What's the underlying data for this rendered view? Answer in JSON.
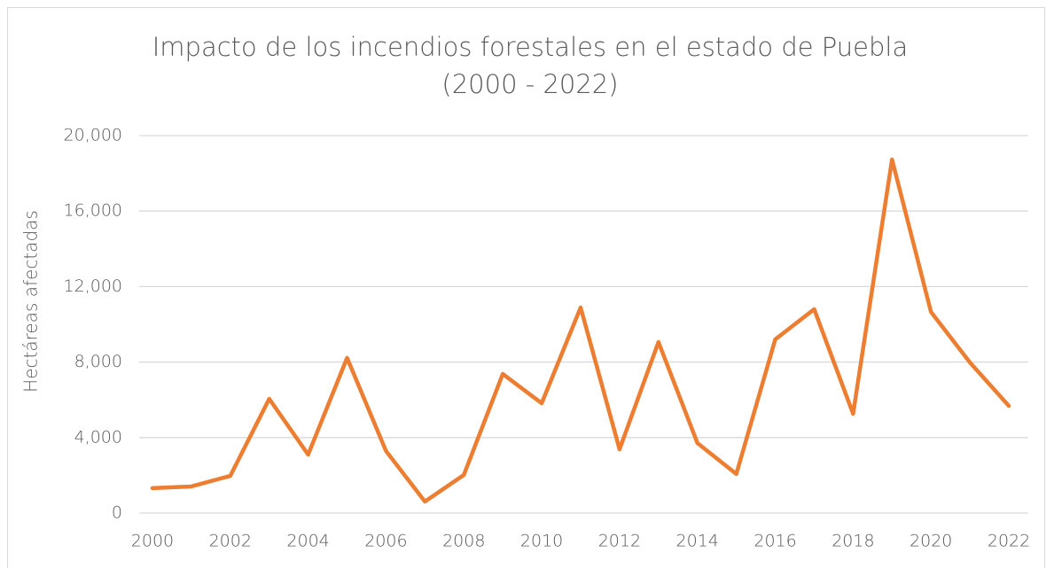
{
  "chart_data": {
    "type": "line",
    "title": [
      "Impacto de los incendios forestales en el estado de Puebla",
      "(2000 - 2022)"
    ],
    "y_label": "Hectáreas afectadas",
    "categories": [
      "2000",
      null,
      "2002",
      null,
      "2004",
      null,
      "2006",
      null,
      "2008",
      null,
      "2010",
      null,
      "2012",
      null,
      "2014",
      null,
      "2016",
      null,
      "2018",
      null,
      "2020",
      null,
      "2022"
    ],
    "series": [
      {
        "name": "Hectáreas afectadas",
        "color": "#ed7d31",
        "values": [
          1320,
          1410,
          1970,
          6050,
          3100,
          8220,
          3290,
          610,
          2020,
          7370,
          5820,
          10890,
          3380,
          9060,
          3710,
          2070,
          9200,
          10800,
          5260,
          18730,
          10660,
          7980,
          5680
        ]
      }
    ],
    "ylim": [
      0,
      20000
    ],
    "yticks": [
      0,
      {
        "value": 4000,
        "label": "4,000"
      },
      {
        "value": 8000,
        "label": "8,000"
      },
      {
        "value": 12000,
        "label": "12,000"
      },
      {
        "value": 16000,
        "label": "16,000"
      },
      {
        "value": 20000,
        "label": "20,000"
      }
    ],
    "grid": true
  }
}
